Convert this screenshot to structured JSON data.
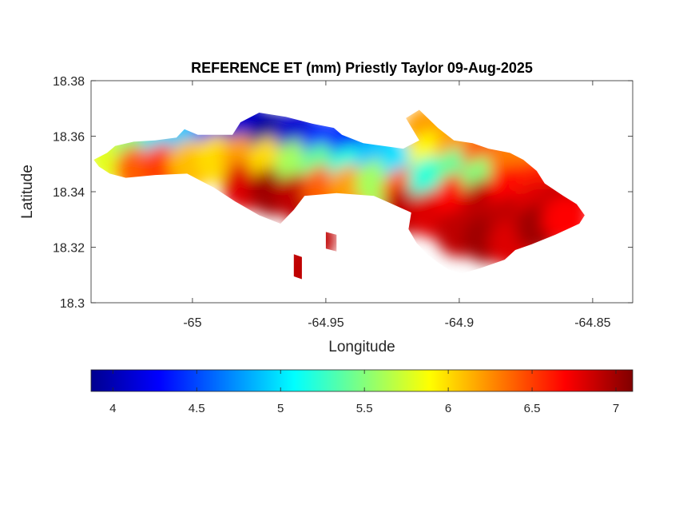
{
  "chart_data": {
    "type": "heatmap",
    "title": "REFERENCE ET (mm) Priestly Taylor 09-Aug-2025",
    "xlabel": "Longitude",
    "ylabel": "Latitude",
    "xlim": [
      -65.038,
      -64.835
    ],
    "ylim": [
      18.3,
      18.38
    ],
    "xticks": [
      -65,
      -64.95,
      -64.9,
      -64.85
    ],
    "xtick_labels": [
      "-65",
      "-64.95",
      "-64.9",
      "-64.85"
    ],
    "yticks": [
      18.3,
      18.32,
      18.34,
      18.36,
      18.38
    ],
    "ytick_labels": [
      "18.3",
      "18.32",
      "18.34",
      "18.36",
      "18.38"
    ],
    "colormap": "jet",
    "colorbar": {
      "placement": "bottom",
      "range": [
        3.87,
        7.1
      ],
      "ticks": [
        4,
        4.5,
        5,
        5.5,
        6,
        6.5,
        7
      ],
      "tick_labels": [
        "4",
        "4.5",
        "5",
        "5.5",
        "6",
        "6.5",
        "7"
      ]
    },
    "land_outline": [
      [
        -65.037,
        18.3515
      ],
      [
        -65.032,
        18.354
      ],
      [
        -65.029,
        18.3565
      ],
      [
        -65.022,
        18.358
      ],
      [
        -65.014,
        18.3585
      ],
      [
        -65.006,
        18.3595
      ],
      [
        -65.003,
        18.3625
      ],
      [
        -64.998,
        18.3605
      ],
      [
        -64.985,
        18.3605
      ],
      [
        -64.982,
        18.365
      ],
      [
        -64.975,
        18.3685
      ],
      [
        -64.965,
        18.367
      ],
      [
        -64.955,
        18.3645
      ],
      [
        -64.947,
        18.363
      ],
      [
        -64.944,
        18.3605
      ],
      [
        -64.936,
        18.3575
      ],
      [
        -64.921,
        18.3555
      ],
      [
        -64.915,
        18.3585
      ],
      [
        -64.92,
        18.3665
      ],
      [
        -64.915,
        18.3695
      ],
      [
        -64.908,
        18.363
      ],
      [
        -64.902,
        18.3585
      ],
      [
        -64.895,
        18.3575
      ],
      [
        -64.889,
        18.3555
      ],
      [
        -64.881,
        18.354
      ],
      [
        -64.876,
        18.3515
      ],
      [
        -64.871,
        18.3475
      ],
      [
        -64.868,
        18.343
      ],
      [
        -64.861,
        18.3385
      ],
      [
        -64.856,
        18.3355
      ],
      [
        -64.853,
        18.3315
      ],
      [
        -64.855,
        18.3285
      ],
      [
        -64.864,
        18.3245
      ],
      [
        -64.873,
        18.321
      ],
      [
        -64.879,
        18.319
      ],
      [
        -64.883,
        18.3155
      ],
      [
        -64.892,
        18.3125
      ],
      [
        -64.899,
        18.3105
      ],
      [
        -64.904,
        18.312
      ],
      [
        -64.908,
        18.3145
      ],
      [
        -64.912,
        18.3175
      ],
      [
        -64.916,
        18.3215
      ],
      [
        -64.919,
        18.3265
      ],
      [
        -64.918,
        18.3325
      ],
      [
        -64.925,
        18.3355
      ],
      [
        -64.932,
        18.3385
      ],
      [
        -64.946,
        18.3395
      ],
      [
        -64.958,
        18.3385
      ],
      [
        -64.962,
        18.3335
      ],
      [
        -64.967,
        18.3285
      ],
      [
        -64.975,
        18.3315
      ],
      [
        -64.984,
        18.3365
      ],
      [
        -64.992,
        18.3415
      ],
      [
        -65.002,
        18.3465
      ],
      [
        -65.014,
        18.346
      ],
      [
        -65.025,
        18.345
      ],
      [
        -65.031,
        18.3465
      ],
      [
        -65.035,
        18.349
      ]
    ],
    "islets": [
      [
        [
          -64.95,
          18.3255
        ],
        [
          -64.946,
          18.3245
        ],
        [
          -64.946,
          18.3185
        ],
        [
          -64.95,
          18.3195
        ]
      ],
      [
        [
          -64.962,
          18.3175
        ],
        [
          -64.959,
          18.3165
        ],
        [
          -64.959,
          18.3085
        ],
        [
          -64.962,
          18.3095
        ]
      ]
    ],
    "et_samples": [
      [
        -65.03,
        18.352,
        5.8
      ],
      [
        -65.02,
        18.356,
        5.5
      ],
      [
        -65.02,
        18.348,
        6.4
      ],
      [
        -65.01,
        18.3575,
        5.0
      ],
      [
        -65.01,
        18.349,
        6.5
      ],
      [
        -65.0,
        18.358,
        4.9
      ],
      [
        -65.0,
        18.35,
        6.1
      ],
      [
        -64.99,
        18.363,
        4.3
      ],
      [
        -64.99,
        18.352,
        6.0
      ],
      [
        -64.98,
        18.364,
        4.1
      ],
      [
        -64.98,
        18.352,
        6.2
      ],
      [
        -64.98,
        18.342,
        6.8
      ],
      [
        -64.97,
        18.36,
        3.9
      ],
      [
        -64.97,
        18.351,
        6.0
      ],
      [
        -64.97,
        18.34,
        7.0
      ],
      [
        -64.96,
        18.36,
        4.1
      ],
      [
        -64.96,
        18.35,
        5.6
      ],
      [
        -64.96,
        18.338,
        6.9
      ],
      [
        -64.95,
        18.357,
        4.4
      ],
      [
        -64.95,
        18.349,
        5.4
      ],
      [
        -64.95,
        18.341,
        6.4
      ],
      [
        -64.94,
        18.357,
        4.4
      ],
      [
        -64.94,
        18.348,
        5.2
      ],
      [
        -64.94,
        18.341,
        6.2
      ],
      [
        -64.93,
        18.352,
        4.9
      ],
      [
        -64.93,
        18.343,
        5.6
      ],
      [
        -64.92,
        18.349,
        5.0
      ],
      [
        -64.92,
        18.34,
        6.4
      ],
      [
        -64.92,
        18.333,
        6.9
      ],
      [
        -64.912,
        18.362,
        6.2
      ],
      [
        -64.91,
        18.353,
        5.9
      ],
      [
        -64.91,
        18.344,
        5.2
      ],
      [
        -64.91,
        18.332,
        6.8
      ],
      [
        -64.9,
        18.356,
        6.2
      ],
      [
        -64.9,
        18.347,
        5.4
      ],
      [
        -64.9,
        18.338,
        6.7
      ],
      [
        -64.9,
        18.325,
        6.9
      ],
      [
        -64.89,
        18.353,
        6.4
      ],
      [
        -64.89,
        18.344,
        5.5
      ],
      [
        -64.89,
        18.336,
        6.9
      ],
      [
        -64.89,
        18.323,
        7.0
      ],
      [
        -64.88,
        18.35,
        6.3
      ],
      [
        -64.88,
        18.341,
        6.7
      ],
      [
        -64.88,
        18.33,
        6.9
      ],
      [
        -64.88,
        18.321,
        6.8
      ],
      [
        -64.87,
        18.343,
        6.6
      ],
      [
        -64.87,
        18.335,
        6.8
      ],
      [
        -64.87,
        18.327,
        7.0
      ],
      [
        -64.86,
        18.336,
        6.9
      ],
      [
        -64.86,
        18.33,
        6.7
      ],
      [
        -64.955,
        18.323,
        6.9
      ],
      [
        -64.96,
        18.312,
        6.9
      ]
    ]
  }
}
